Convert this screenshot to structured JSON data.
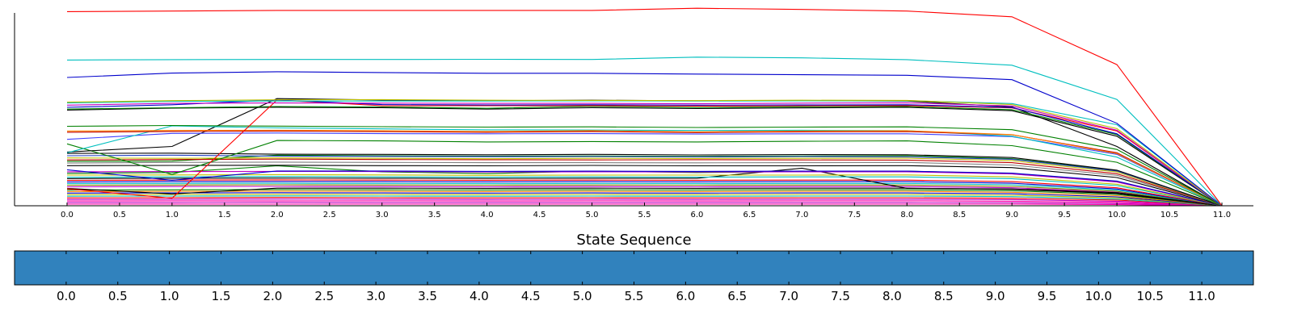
{
  "chart_data": [
    {
      "type": "line",
      "title": "",
      "xlabel": "",
      "ylabel": "",
      "xlim": [
        -0.5,
        11.3
      ],
      "ylim": [
        0,
        100
      ],
      "grid": false,
      "y_tick_labels_visible": false,
      "x_ticks": [
        0.0,
        0.5,
        1.0,
        1.5,
        2.0,
        2.5,
        3.0,
        3.5,
        4.0,
        4.5,
        5.0,
        5.5,
        6.0,
        6.5,
        7.0,
        7.5,
        8.0,
        8.5,
        9.0,
        9.5,
        10.0,
        10.5,
        11.0
      ],
      "x_tick_labels": [
        "0.0",
        "0.5",
        "1.0",
        "1.5",
        "2.0",
        "2.5",
        "3.0",
        "3.5",
        "4.0",
        "4.5",
        "5.0",
        "5.5",
        "6.0",
        "6.5",
        "7.0",
        "7.5",
        "8.0",
        "8.5",
        "9.0",
        "9.5",
        "10.0",
        "10.5",
        "11.0"
      ],
      "x": [
        0,
        1,
        2,
        3,
        4,
        5,
        6,
        7,
        8,
        9,
        10,
        11
      ],
      "series": [
        {
          "color": "#ff0000",
          "values": [
            98.2,
            98.5,
            98.8,
            98.8,
            98.8,
            98.8,
            99.9,
            99.3,
            98.5,
            95.6,
            71.4,
            0
          ]
        },
        {
          "color": "#00bfbf",
          "values": [
            73.7,
            73.9,
            74.0,
            74.0,
            74.1,
            74.0,
            75.2,
            74.8,
            73.9,
            71.1,
            53.8,
            0
          ]
        },
        {
          "color": "#0000cc",
          "values": [
            64.9,
            67.1,
            67.8,
            67.4,
            67.0,
            67.0,
            66.6,
            66.3,
            66.0,
            63.8,
            41.7,
            0
          ]
        },
        {
          "color": "#bfbf00",
          "values": [
            52.4,
            53.2,
            53.6,
            53.7,
            53.4,
            53.3,
            53.2,
            53.4,
            53.3,
            51.2,
            39.0,
            0
          ]
        },
        {
          "color": "#00bfbf",
          "values": [
            52.0,
            52.8,
            53.0,
            53.0,
            53.0,
            53.1,
            53.0,
            53.1,
            53.2,
            51.7,
            41.0,
            0
          ]
        },
        {
          "color": "#bf00bf",
          "values": [
            50.9,
            51.8,
            52.0,
            51.9,
            51.8,
            51.8,
            51.6,
            51.9,
            52.1,
            50.5,
            38.2,
            0
          ]
        },
        {
          "color": "#0000cc",
          "values": [
            49.8,
            51.1,
            53.5,
            51.2,
            51.0,
            51.1,
            50.9,
            51.0,
            51.1,
            49.7,
            36.4,
            0
          ]
        },
        {
          "color": "#ff0000",
          "values": [
            8.6,
            3.8,
            53.5,
            50.6,
            50.6,
            50.7,
            50.4,
            50.6,
            50.7,
            49.5,
            37.8,
            0
          ]
        },
        {
          "color": "#008000",
          "values": [
            48.9,
            49.6,
            50.2,
            50.0,
            49.3,
            50.3,
            49.7,
            50.1,
            50.2,
            48.6,
            36.0,
            0
          ]
        },
        {
          "color": "#000000",
          "values": [
            48.4,
            49.4,
            49.8,
            49.6,
            48.9,
            49.6,
            49.2,
            49.5,
            49.8,
            48.1,
            35.2,
            0
          ]
        },
        {
          "color": "#008000",
          "values": [
            40.2,
            40.6,
            40.3,
            40.0,
            39.8,
            39.9,
            39.6,
            39.8,
            39.9,
            38.5,
            28.5,
            0
          ]
        },
        {
          "color": "#ff8000",
          "values": [
            37.8,
            38.1,
            38.2,
            37.9,
            37.6,
            38.0,
            37.4,
            37.8,
            37.9,
            36.0,
            26.4,
            0
          ]
        },
        {
          "color": "#bf0000",
          "values": [
            37.2,
            37.6,
            37.8,
            37.5,
            37.2,
            37.5,
            37.0,
            37.4,
            37.5,
            35.9,
            26.8,
            0
          ]
        },
        {
          "color": "#00bfbf",
          "values": [
            26.8,
            40.4,
            39.4,
            38.9,
            38.4,
            38.3,
            38.1,
            38.2,
            38.0,
            35.2,
            24.6,
            0
          ]
        },
        {
          "color": "#4040ff",
          "values": [
            33.6,
            36.6,
            36.8,
            36.5,
            36.4,
            36.5,
            36.3,
            36.4,
            36.4,
            35.0,
            26.0,
            0
          ]
        },
        {
          "color": "#000000",
          "values": [
            27.2,
            30.0,
            54.2,
            53.5,
            53.1,
            53.4,
            53.1,
            53.2,
            53.0,
            50.0,
            30.0,
            0
          ]
        },
        {
          "color": "#008000",
          "values": [
            31.3,
            15.8,
            33.0,
            32.8,
            32.3,
            32.5,
            32.3,
            32.6,
            32.8,
            30.4,
            22.0,
            0
          ]
        },
        {
          "color": "#000000",
          "values": [
            26.5,
            26.6,
            26.1,
            26.0,
            25.8,
            26.0,
            25.7,
            25.9,
            25.8,
            24.4,
            18.0,
            0
          ]
        },
        {
          "color": "#1f3fbf",
          "values": [
            25.3,
            25.6,
            25.1,
            25.0,
            24.8,
            24.9,
            24.7,
            24.9,
            24.7,
            23.5,
            17.6,
            0
          ]
        },
        {
          "color": "#bfbf00",
          "values": [
            24.2,
            24.0,
            24.2,
            24.0,
            23.8,
            24.0,
            23.9,
            24.0,
            24.1,
            22.8,
            17.1,
            0
          ]
        },
        {
          "color": "#bf0000",
          "values": [
            23.2,
            23.4,
            23.6,
            23.4,
            23.3,
            23.2,
            23.3,
            23.2,
            23.1,
            21.8,
            16.2,
            0
          ]
        },
        {
          "color": "#008000",
          "values": [
            22.5,
            22.6,
            25.6,
            25.3,
            25.1,
            25.2,
            25.0,
            25.2,
            25.3,
            23.8,
            17.8,
            0
          ]
        },
        {
          "color": "#808080",
          "values": [
            21.6,
            21.9,
            22.1,
            21.9,
            21.8,
            21.8,
            21.7,
            21.8,
            21.9,
            20.6,
            15.4,
            0
          ]
        },
        {
          "color": "#000000",
          "values": [
            20.3,
            20.4,
            20.5,
            20.3,
            20.2,
            20.4,
            20.2,
            20.2,
            20.3,
            19.3,
            14.3,
            0
          ]
        },
        {
          "color": "#0000cc",
          "values": [
            18.2,
            12.9,
            17.6,
            17.6,
            17.4,
            17.5,
            17.4,
            17.5,
            17.5,
            16.5,
            12.5,
            0
          ]
        },
        {
          "color": "#bf00bf",
          "values": [
            17.2,
            17.3,
            17.4,
            17.3,
            17.1,
            17.2,
            17.1,
            17.2,
            17.2,
            16.1,
            12.0,
            0
          ]
        },
        {
          "color": "#008000",
          "values": [
            16.4,
            16.8,
            20.2,
            17.2,
            16.3,
            17.5,
            16.8,
            17.3,
            17.5,
            16.2,
            12.2,
            0
          ]
        },
        {
          "color": "#bfbf00",
          "values": [
            15.5,
            15.6,
            15.7,
            15.6,
            15.4,
            15.5,
            15.5,
            15.5,
            15.6,
            14.6,
            10.9,
            0
          ]
        },
        {
          "color": "#00bfbf",
          "values": [
            14.4,
            14.6,
            14.8,
            14.6,
            14.5,
            14.6,
            14.5,
            14.6,
            14.6,
            13.7,
            10.2,
            0
          ]
        },
        {
          "color": "#000000",
          "values": [
            13.7,
            13.9,
            14.0,
            13.9,
            13.8,
            13.9,
            13.9,
            19.0,
            8.8,
            8.5,
            6.6,
            0
          ]
        },
        {
          "color": "#ff0000",
          "values": [
            12.8,
            13.0,
            13.1,
            13.0,
            12.9,
            13.0,
            12.9,
            13.0,
            13.0,
            12.2,
            9.1,
            0
          ]
        },
        {
          "color": "#0000cc",
          "values": [
            12.0,
            12.2,
            12.3,
            12.2,
            12.1,
            12.2,
            12.1,
            12.2,
            12.2,
            11.4,
            8.5,
            0
          ]
        },
        {
          "color": "#00bfbf",
          "values": [
            11.2,
            11.3,
            11.4,
            11.3,
            11.2,
            11.3,
            11.2,
            11.3,
            11.3,
            10.6,
            7.9,
            0
          ]
        },
        {
          "color": "#808000",
          "values": [
            10.4,
            10.5,
            10.6,
            10.5,
            10.4,
            10.5,
            10.4,
            10.5,
            10.5,
            9.8,
            7.3,
            0
          ]
        },
        {
          "color": "#bf00bf",
          "values": [
            9.6,
            9.7,
            9.8,
            9.7,
            9.6,
            9.7,
            9.6,
            9.7,
            9.7,
            9.1,
            6.8,
            0
          ]
        },
        {
          "color": "#000000",
          "values": [
            8.8,
            6.0,
            8.9,
            8.9,
            8.8,
            8.9,
            8.8,
            8.9,
            8.9,
            8.3,
            6.2,
            0
          ]
        },
        {
          "color": "#008000",
          "values": [
            8.0,
            8.1,
            8.2,
            8.1,
            8.0,
            8.1,
            8.0,
            8.1,
            8.1,
            7.6,
            5.7,
            0
          ]
        },
        {
          "color": "#ff8000",
          "values": [
            7.2,
            7.3,
            7.4,
            7.3,
            7.2,
            7.3,
            7.2,
            7.3,
            7.3,
            6.8,
            5.1,
            0
          ]
        },
        {
          "color": "#0000cc",
          "values": [
            6.4,
            6.5,
            6.6,
            6.5,
            6.4,
            6.5,
            6.4,
            6.5,
            6.5,
            6.1,
            4.5,
            0
          ]
        },
        {
          "color": "#bfbf00",
          "values": [
            5.6,
            5.7,
            5.8,
            5.7,
            5.6,
            5.7,
            5.6,
            5.7,
            5.7,
            5.3,
            4.0,
            0
          ]
        },
        {
          "color": "#00bfbf",
          "values": [
            4.8,
            4.9,
            5.0,
            4.9,
            4.8,
            4.9,
            4.8,
            4.9,
            4.9,
            4.6,
            3.4,
            0
          ]
        },
        {
          "color": "#ff0000",
          "values": [
            4.0,
            4.1,
            4.2,
            4.1,
            4.0,
            4.1,
            4.0,
            4.1,
            4.1,
            3.8,
            2.9,
            0
          ]
        },
        {
          "color": "#bf00bf",
          "values": [
            3.2,
            3.3,
            3.4,
            3.3,
            3.2,
            3.3,
            3.2,
            3.3,
            3.3,
            3.1,
            2.3,
            0
          ]
        },
        {
          "color": "#ff00aa",
          "values": [
            2.4,
            2.5,
            2.5,
            2.5,
            2.4,
            2.5,
            2.4,
            2.5,
            2.5,
            2.3,
            1.7,
            0
          ]
        },
        {
          "color": "#bf00bf",
          "values": [
            1.6,
            1.6,
            1.7,
            1.6,
            1.6,
            1.6,
            1.6,
            1.6,
            1.6,
            1.5,
            1.1,
            0
          ]
        },
        {
          "color": "#ff00aa",
          "values": [
            0.8,
            0.8,
            0.8,
            0.8,
            0.8,
            0.8,
            0.8,
            0.8,
            0.8,
            0.8,
            0.6,
            0
          ]
        }
      ]
    },
    {
      "type": "bar",
      "title": "State Sequence",
      "fill_color": "#3182bd",
      "xlim": [
        -0.5,
        11.5
      ],
      "x_ticks": [
        0.0,
        0.5,
        1.0,
        1.5,
        2.0,
        2.5,
        3.0,
        3.5,
        4.0,
        4.5,
        5.0,
        5.5,
        6.0,
        6.5,
        7.0,
        7.5,
        8.0,
        8.5,
        9.0,
        9.5,
        10.0,
        10.5,
        11.0
      ],
      "x_tick_labels": [
        "0.0",
        "0.5",
        "1.0",
        "1.5",
        "2.0",
        "2.5",
        "3.0",
        "3.5",
        "4.0",
        "4.5",
        "5.0",
        "5.5",
        "6.0",
        "6.5",
        "7.0",
        "7.5",
        "8.0",
        "8.5",
        "9.0",
        "9.5",
        "10.0",
        "10.5",
        "11.0"
      ]
    }
  ]
}
